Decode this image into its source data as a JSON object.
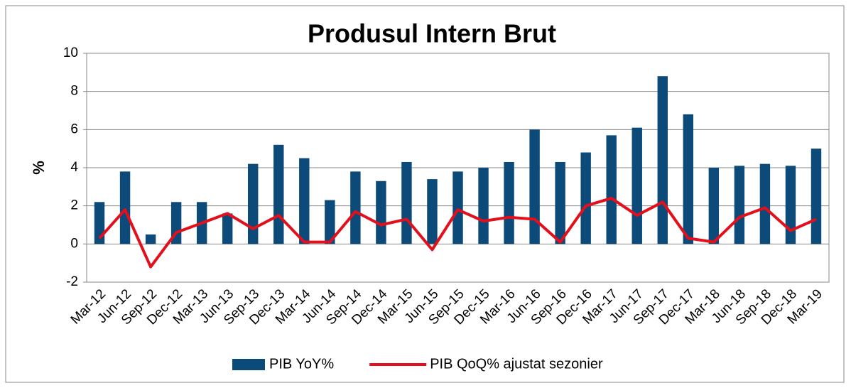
{
  "chart_data": {
    "type": "bar_line",
    "title": "Produsul Intern Brut",
    "y_label": "%",
    "categories": [
      "Mar-12",
      "Jun-12",
      "Sep-12",
      "Dec-12",
      "Mar-13",
      "Jun-13",
      "Sep-13",
      "Dec-13",
      "Mar-14",
      "Jun-14",
      "Sep-14",
      "Dec-14",
      "Mar-15",
      "Jun-15",
      "Sep-15",
      "Dec-15",
      "Mar-16",
      "Jun-16",
      "Sep-16",
      "Dec-16",
      "Mar-17",
      "Jun-17",
      "Sep-17",
      "Dec-17",
      "Mar-18",
      "Jun-18",
      "Sep-18",
      "Dec-18",
      "Mar-19"
    ],
    "series": [
      {
        "name": "PIB YoY%",
        "type": "bar",
        "color": "#0c4a7a",
        "values": [
          2.2,
          3.8,
          0.5,
          2.2,
          2.2,
          1.6,
          4.2,
          5.2,
          4.5,
          2.3,
          3.8,
          3.3,
          4.3,
          3.4,
          3.8,
          4.0,
          4.3,
          6.0,
          4.3,
          4.8,
          5.7,
          6.1,
          8.8,
          6.8,
          4.0,
          4.1,
          4.2,
          4.1,
          5.0
        ]
      },
      {
        "name": "PIB QoQ% ajustat sezonier",
        "type": "line",
        "color": "#e3101c",
        "values": [
          0.3,
          1.8,
          -1.2,
          0.6,
          1.1,
          1.6,
          0.8,
          1.5,
          0.1,
          0.1,
          1.7,
          1.0,
          1.3,
          -0.3,
          1.8,
          1.2,
          1.4,
          1.3,
          0.1,
          2.0,
          2.4,
          1.5,
          2.2,
          0.3,
          0.1,
          1.4,
          1.9,
          0.7,
          1.3
        ]
      }
    ],
    "ylim": [
      -2,
      10
    ],
    "yticks": [
      -2,
      0,
      2,
      4,
      6,
      8,
      10
    ],
    "grid": true,
    "legend": "bottom"
  }
}
